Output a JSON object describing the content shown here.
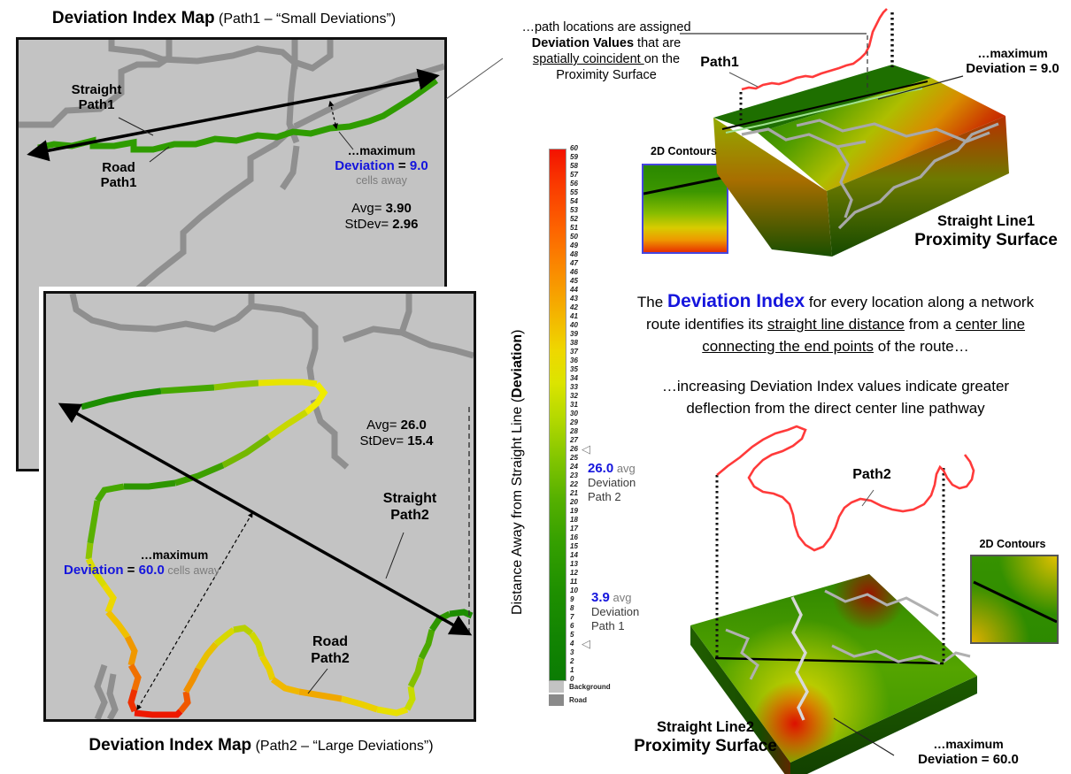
{
  "map1": {
    "title_bold": "Deviation Index Map",
    "title_note": " (Path1 – “Small Deviations”)",
    "straight_l1": "Straight",
    "straight_l2": "Path1",
    "road_l1": "Road",
    "road_l2": "Path1",
    "maximum": "…maximum",
    "deviation_segments": [
      {
        "t": "Deviation",
        "s": "blue"
      },
      {
        "t": " = ",
        "s": "b"
      },
      {
        "t": "9.0",
        "s": "blue"
      }
    ],
    "cells_away": "cells away",
    "avg_segments": [
      {
        "t": "Avg= "
      },
      {
        "t": "3.90",
        "s": "b"
      }
    ],
    "stdev_segments": [
      {
        "t": "StDev= "
      },
      {
        "t": "2.96",
        "s": "b"
      }
    ]
  },
  "map2": {
    "title_bold": "Deviation Index Map",
    "title_note": " (Path2 – “Large Deviations”)",
    "straight_l1": "Straight",
    "straight_l2": "Path2",
    "road_l1": "Road",
    "road_l2": "Path2",
    "maximum": "…maximum",
    "deviation_segments": [
      {
        "t": "Deviation",
        "s": "blue"
      },
      {
        "t": " = ",
        "s": "b"
      },
      {
        "t": "60.0",
        "s": "blue"
      },
      {
        "t": " cells away",
        "s": "gray"
      }
    ],
    "cells_away": "cells away",
    "avg_segments": [
      {
        "t": "Avg= "
      },
      {
        "t": "26.0",
        "s": "b"
      }
    ],
    "stdev_segments": [
      {
        "t": "StDev= "
      },
      {
        "t": "15.4",
        "s": "b"
      }
    ]
  },
  "annotation": {
    "line1": "…path locations  are assigned",
    "line2_segments": [
      {
        "t": "Deviation Values",
        "s": "b"
      },
      {
        "t": " that are"
      }
    ],
    "line3_segments": [
      {
        "t": "spatially coincident ",
        "s": "u"
      },
      {
        "t": "on the"
      }
    ],
    "line4": "Proximity Surface"
  },
  "legend": {
    "axis_segments": [
      {
        "t": "Distance Away from Straight Line ("
      },
      {
        "t": "Deviation",
        "s": "b"
      },
      {
        "t": ")"
      }
    ],
    "ticks": [
      60,
      59,
      58,
      57,
      56,
      55,
      54,
      53,
      52,
      51,
      50,
      49,
      48,
      47,
      46,
      45,
      44,
      43,
      42,
      41,
      40,
      39,
      38,
      37,
      36,
      35,
      34,
      33,
      32,
      31,
      30,
      29,
      28,
      27,
      26,
      25,
      24,
      23,
      22,
      21,
      20,
      19,
      18,
      17,
      16,
      15,
      14,
      13,
      12,
      11,
      10,
      9,
      8,
      7,
      6,
      5,
      4,
      3,
      2,
      1,
      0
    ],
    "background_label": "Background",
    "road_label": "Road",
    "marker_char": "◁",
    "path2_note": {
      "value": "26.0",
      "suffix": " avg",
      "line2": "Deviation",
      "line3": "Path 2"
    },
    "path1_note": {
      "value": "3.9",
      "suffix": " avg",
      "line2": "Deviation",
      "line3": "Path 1"
    }
  },
  "surface1": {
    "path_label": "Path1",
    "maximum": "…maximum",
    "deviation": "Deviation = 9.0",
    "title1": "Straight Line1",
    "title2": "Proximity Surface",
    "inset_label": "2D Contours"
  },
  "surface2": {
    "path_label": "Path2",
    "maximum": "…maximum",
    "deviation": "Deviation = 60.0",
    "title1": "Straight Line2",
    "title2": "Proximity Surface",
    "inset_label": "2D Contours"
  },
  "center_text": {
    "line1_segments": [
      {
        "t": "The "
      },
      {
        "t": "Deviation Index",
        "s": "bluebig"
      },
      {
        "t": " for every location along a network"
      }
    ],
    "line2_segments": [
      {
        "t": "route identifies its "
      },
      {
        "t": "straight line distance",
        "s": "u"
      },
      {
        "t": " from a "
      },
      {
        "t": "center line",
        "s": "u"
      }
    ],
    "line3_segments": [
      {
        "t": "connecting the end points",
        "s": "u"
      },
      {
        "t": " of the route…"
      }
    ],
    "line4": "…increasing Deviation Index values indicate greater",
    "line5": "deflection from the direct center line pathway"
  },
  "colors": {
    "accent_blue": "#1515dd",
    "map_background": "#c3c3c3",
    "road_gray": "#8f8f8f",
    "path1_green": "#2f9c00",
    "legend_top_red": "#f31200",
    "legend_bottom_green": "#0b7c03"
  }
}
